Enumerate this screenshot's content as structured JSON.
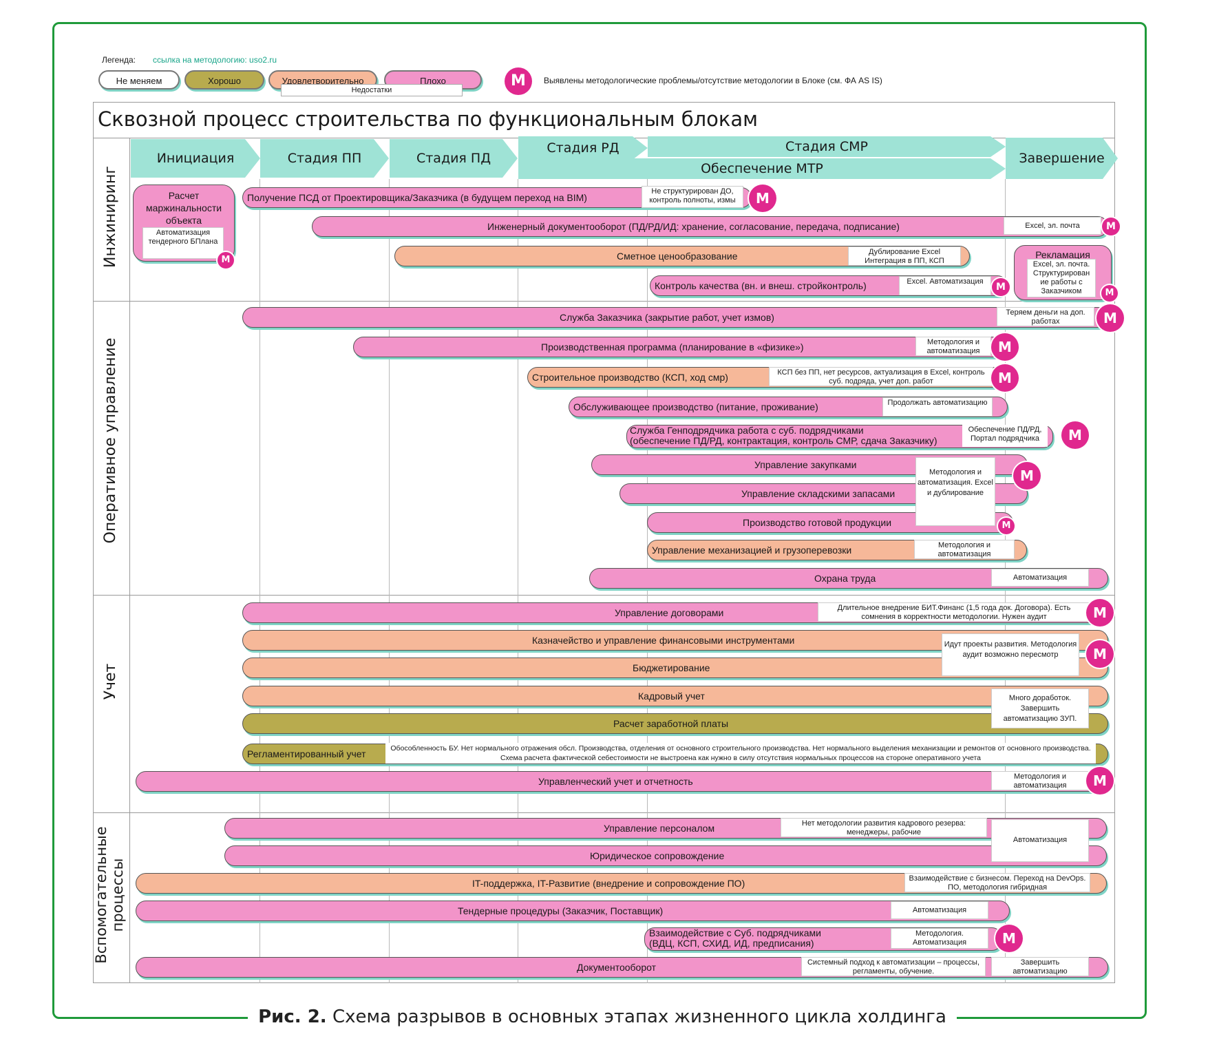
{
  "legend": {
    "title": "Легенда:",
    "link": "ссылка на методологию: uso2.ru",
    "items": [
      "Не меняем",
      "Хорошо",
      "Удовлетворительно",
      "Плохо"
    ],
    "under_label": "Недостатки",
    "m_text": "Выявлены методологические проблемы/отсутствие методологии в Блоке (см. ФА AS IS)",
    "m": "M"
  },
  "colors": {
    "pink": "#f294c9",
    "peach": "#f6b899",
    "olive": "#b8ab4e",
    "stage": "#9fe3d6",
    "frame": "#1f9a3a",
    "badge": "#e0288e"
  },
  "diagram_title": "Сквозной процесс строительства по функциональным блокам",
  "stages": [
    "Инициация",
    "Стадия ПП",
    "Стадия ПД",
    "Стадия РД",
    "Стадия СМР",
    "Обеспечение МТР",
    "Завершение"
  ],
  "rows": [
    "Инжиниринг",
    "Оперативное управление",
    "Учет",
    "Вспомогательные процессы"
  ],
  "bars": {
    "b1": "Расчет маржинальности объекта",
    "b1n": "Автоматизация тендерного БПлана",
    "b2": "Получение ПСД от Проектировщика/Заказчика (в будущем переход на BIM)",
    "b2n": "Не структурирован ДО, контроль полноты, измы",
    "b3": "Инженерный документооборот (ПД/РД/ИД: хранение, согласование, передача, подписание)",
    "b3n": "Excel, эл. почта",
    "b4": "Сметное ценообразование",
    "b4n": "Дублирование Excel Интеграция в ПП, КСП",
    "b5": "Контроль качества (вн. и внеш. стройконтроль)",
    "b5n": "Excel. Автоматизация",
    "b6": "Рекламация",
    "b6n": "Excel, эл. почта. Структурирован ие работы с Заказчиком",
    "b7": "Служба Заказчика (закрытие работ, учет измов)",
    "b7n": "Теряем деньги на доп. работах",
    "b8": "Производственная программа (планирование в «физике»)",
    "b8n": "Методология и автоматизация",
    "b9": "Строительное производство (КСП, ход смр)",
    "b9n": "КСП без ПП, нет ресурсов, актуализация в Excel, контроль суб. подряда, учет доп. работ",
    "b10": "Обслуживающее производство (питание, проживание)",
    "b10n": "Продолжать автоматизацию",
    "b11a": "Служба Генподрядчика работа с суб. подрядчиками",
    "b11b": "(обеспечение ПД/РД, контрактация, контроль СМР, сдача Заказчику)",
    "b11n": "Обеспечение ПД/РД, Портал подрядчика",
    "b12": "Управление закупками",
    "b13": "Управление складскими запасами",
    "b14": "Производство готовой продукции",
    "b12n": "Методология и автоматизация. Excel и дублирование",
    "b15": "Управление механизацией и грузоперевозки",
    "b15n": "Методология и автоматизация",
    "b16": "Охрана труда",
    "b16n": "Автоматизация",
    "b17": "Управление договорами",
    "b17n": "Длительное внедрение БИТ.Финанс (1,5 года док. Договора). Есть сомнения в корректности методологии. Нужен аудит",
    "b18": "Казначейство и управление финансовыми инструментами",
    "b19": "Бюджетирование",
    "b18n": "Идут проекты развития. Методология аудит возможно пересмотр",
    "b20": "Кадровый учет",
    "b21": "Расчет заработной платы",
    "b20n": "Много доработок. Завершить автоматизацию ЗУП.",
    "b22": "Регламентированный учет",
    "b22n": "Обособленность БУ. Нет нормального отражения обсл. Производства, отделения от основного строительного производства. Нет нормального выделения механизации и ремонтов от основного производства. Схема расчета фактической себестоимости не выстроена как нужно в силу отсутствия нормальных процессов на стороне оперативного учета",
    "b23": "Управленческий учет и отчетность",
    "b23n": "Методология и автоматизация",
    "b24": "Управление персоналом",
    "b24n": "Нет методологии развития кадрового резерва: менеджеры, рабочие",
    "b25": "Юридическое сопровождение",
    "b2425n": "Автоматизация",
    "b26": "IT-поддержка, IT-Развитие (внедрение и сопровождение ПО)",
    "b26n": "Взаимодействие с бизнесом. Переход на DevOps. ПО, методология гибридная",
    "b27": "Тендерные процедуры (Заказчик, Поставщик)",
    "b27n": "Автоматизация",
    "b28a": "Взаимодействие с Суб. подрядчиками",
    "b28b": "(ВДЦ, КСП, СХИД, ИД, предписания)",
    "b28n": "Методология. Автоматизация",
    "b29": "Документооборот",
    "b29n1": "Системный подход к автоматизации – процессы, регламенты, обучение.",
    "b29n2": "Завершить автоматизацию"
  },
  "caption": {
    "bold": "Рис. 2.",
    "text": "Схема разрывов в основных этапах жизненного цикла холдинга"
  }
}
